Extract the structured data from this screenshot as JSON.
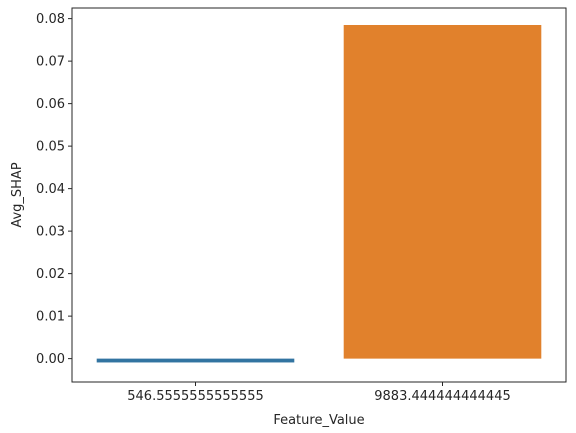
{
  "chart_data": {
    "type": "bar",
    "title": "",
    "xlabel": "Feature_Value",
    "ylabel": "Avg_SHAP",
    "categories": [
      "546.5555555555555",
      "9883.444444444445"
    ],
    "values": [
      -0.0009,
      0.0785
    ],
    "colors": [
      "#3274a1",
      "#e1812c"
    ],
    "ylim": [
      -0.0055,
      0.0825
    ],
    "yticks": [
      0.0,
      0.01,
      0.02,
      0.03,
      0.04,
      0.05,
      0.06,
      0.07,
      0.08
    ],
    "ytick_labels": [
      "0.00",
      "0.01",
      "0.02",
      "0.03",
      "0.04",
      "0.05",
      "0.06",
      "0.07",
      "0.08"
    ],
    "grid": false,
    "legend": "none"
  }
}
